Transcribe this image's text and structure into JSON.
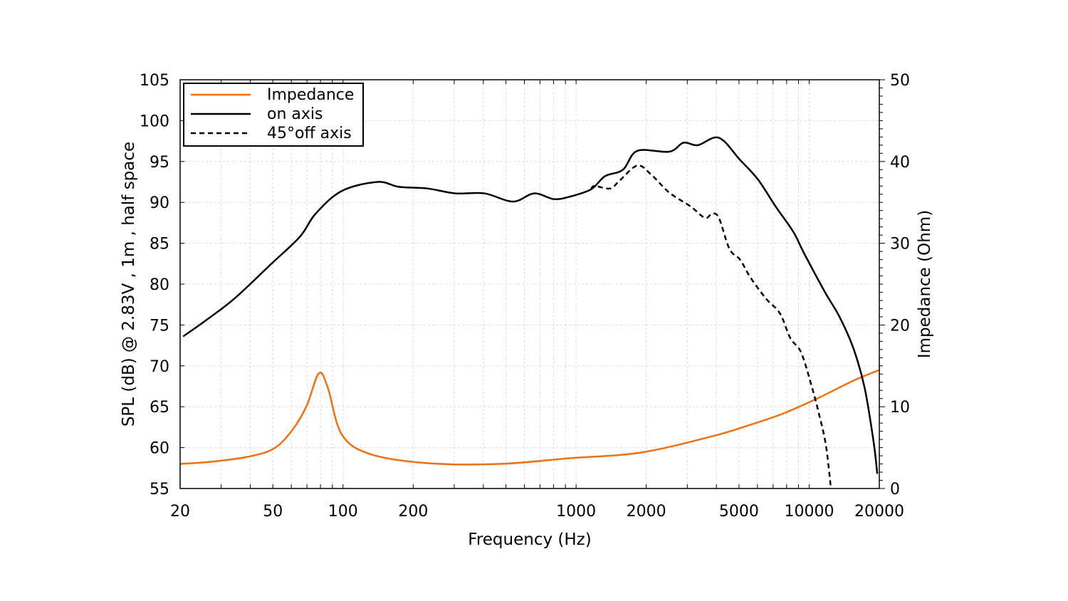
{
  "chart_data": {
    "type": "line",
    "title": "",
    "xlabel": "Frequency (Hz)",
    "ylabel": "SPL (dB) @ 2.83V , 1m , half space",
    "ylabel_right": "Impedance (Ohm)",
    "xscale": "log",
    "xlim": [
      20,
      20000
    ],
    "ylim": [
      55,
      105
    ],
    "ylim_right": [
      0,
      50
    ],
    "xticks": [
      20,
      50,
      100,
      200,
      1000,
      2000,
      5000,
      10000,
      20000
    ],
    "xtick_labels": [
      "20",
      "50",
      "100",
      "200",
      "1000",
      "2000",
      "5000",
      "10000",
      "20000"
    ],
    "yticks": [
      55,
      60,
      65,
      70,
      75,
      80,
      85,
      90,
      95,
      100,
      105
    ],
    "ytick_labels": [
      "55",
      "60",
      "65",
      "70",
      "75",
      "80",
      "85",
      "90",
      "95",
      "100",
      "105"
    ],
    "yticks_right": [
      0,
      10,
      20,
      30,
      40,
      50
    ],
    "ytick_labels_right": [
      "0",
      "10",
      "20",
      "30",
      "40",
      "50"
    ],
    "grid": true,
    "legend_position": "top-left",
    "series": [
      {
        "name": "Impedance",
        "axis": "right",
        "color": "#f07010",
        "style": "solid",
        "x": [
          20,
          27.8,
          39.4,
          50.6,
          60.4,
          69.8,
          78.8,
          86.1,
          98.8,
          131,
          230,
          466,
          940,
          1900,
          3850,
          5470,
          7780,
          11000,
          15500,
          20000
        ],
        "y": [
          3.0,
          3.3,
          3.9,
          4.9,
          7.1,
          10.1,
          14.1,
          12.3,
          6.6,
          4.2,
          3.1,
          3.0,
          3.7,
          4.4,
          6.4,
          7.7,
          9.2,
          11.1,
          13.2,
          14.5
        ]
      },
      {
        "name": "on axis",
        "axis": "left",
        "color": "#000000",
        "style": "solid",
        "x": [
          20.6,
          25.9,
          34.4,
          48.9,
          65.3,
          76.2,
          98.8,
          140.7,
          173.6,
          230,
          304,
          404,
          536,
          660,
          803,
          940,
          1160,
          1330,
          1590,
          1830,
          2510,
          2890,
          3330,
          4100,
          5050,
          6030,
          7180,
          8550,
          9500,
          11700,
          13500,
          15500,
          17300,
          18900,
          19600
        ],
        "y": [
          73.6,
          75.6,
          78.3,
          82.4,
          85.8,
          88.6,
          91.4,
          92.5,
          91.9,
          91.7,
          91.1,
          91.1,
          90.1,
          91.1,
          90.4,
          90.7,
          91.6,
          93.2,
          94.0,
          96.3,
          96.2,
          97.3,
          97.0,
          97.9,
          95.2,
          92.8,
          89.5,
          86.4,
          83.8,
          79.0,
          76.0,
          72.1,
          67.3,
          60.7,
          56.8
        ]
      },
      {
        "name": "45°off axis",
        "axis": "left",
        "color": "#000000",
        "style": "dashed",
        "x": [
          1160,
          1200,
          1400,
          1530,
          1830,
          2100,
          2510,
          3100,
          3570,
          3830,
          4100,
          4550,
          5050,
          5600,
          6540,
          7500,
          8300,
          9250,
          10300,
          11000,
          11800,
          12400
        ],
        "y": [
          91.6,
          92.0,
          91.7,
          92.6,
          94.5,
          93.4,
          91.2,
          89.5,
          88.1,
          88.6,
          88.1,
          84.3,
          83.0,
          80.8,
          78.2,
          76.4,
          73.4,
          71.6,
          67.3,
          64.2,
          60.3,
          55.0
        ]
      }
    ]
  }
}
